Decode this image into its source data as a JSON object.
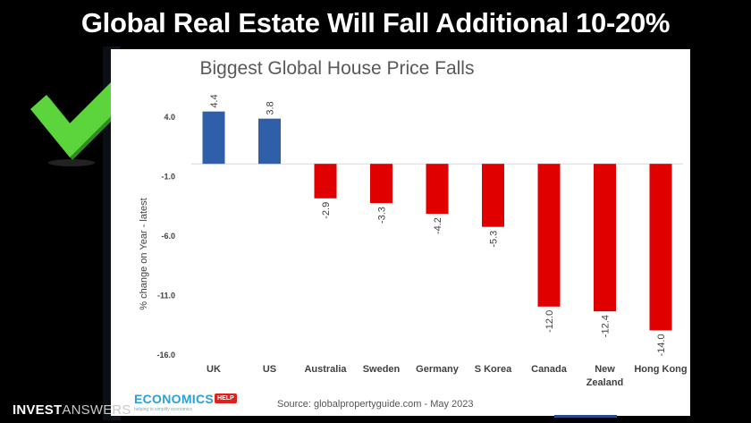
{
  "headline": "Global Real Estate Will Fall Additional 10-20%",
  "brand": {
    "left": "INVEST",
    "right": "ANSWERS"
  },
  "footer": {
    "logo_text": "ECONOMICS",
    "logo_badge": "HELP",
    "logo_tagline": "helping to simplify economics",
    "source": "Source: globalpropertyguide.com - May 2023"
  },
  "colors": {
    "positive": "#2e5fa8",
    "negative": "#e00000",
    "check": "#5cd43c"
  },
  "chart_data": {
    "type": "bar",
    "title": "Biggest Global House Price Falls",
    "ylabel": "% change on Year - latest",
    "xlabel": "",
    "categories": [
      "UK",
      "US",
      "Australia",
      "Sweden",
      "Germany",
      "S Korea",
      "Canada",
      "New Zealand",
      "Hong Kong"
    ],
    "category_lines": [
      [
        "UK"
      ],
      [
        "US"
      ],
      [
        "Australia"
      ],
      [
        "Sweden"
      ],
      [
        "Germany"
      ],
      [
        "S Korea"
      ],
      [
        "Canada"
      ],
      [
        "New",
        "Zealand"
      ],
      [
        "Hong Kong"
      ]
    ],
    "values": [
      4.4,
      3.8,
      -2.9,
      -3.3,
      -4.2,
      -5.3,
      -12.0,
      -12.4,
      -14.0
    ],
    "value_labels": [
      "4.4",
      "3.8",
      "-2.9",
      "-3.3",
      "-4.2",
      "-5.3",
      "-12.0",
      "-12.4",
      "-14.0"
    ],
    "yticks": [
      4.0,
      -1.0,
      -6.0,
      -11.0,
      -16.0
    ],
    "ytick_labels": [
      "4.0",
      "-1.0",
      "-6.0",
      "-11.0",
      "-16.0"
    ],
    "ylim": [
      -16,
      4
    ],
    "grid": false,
    "legend": "none"
  }
}
